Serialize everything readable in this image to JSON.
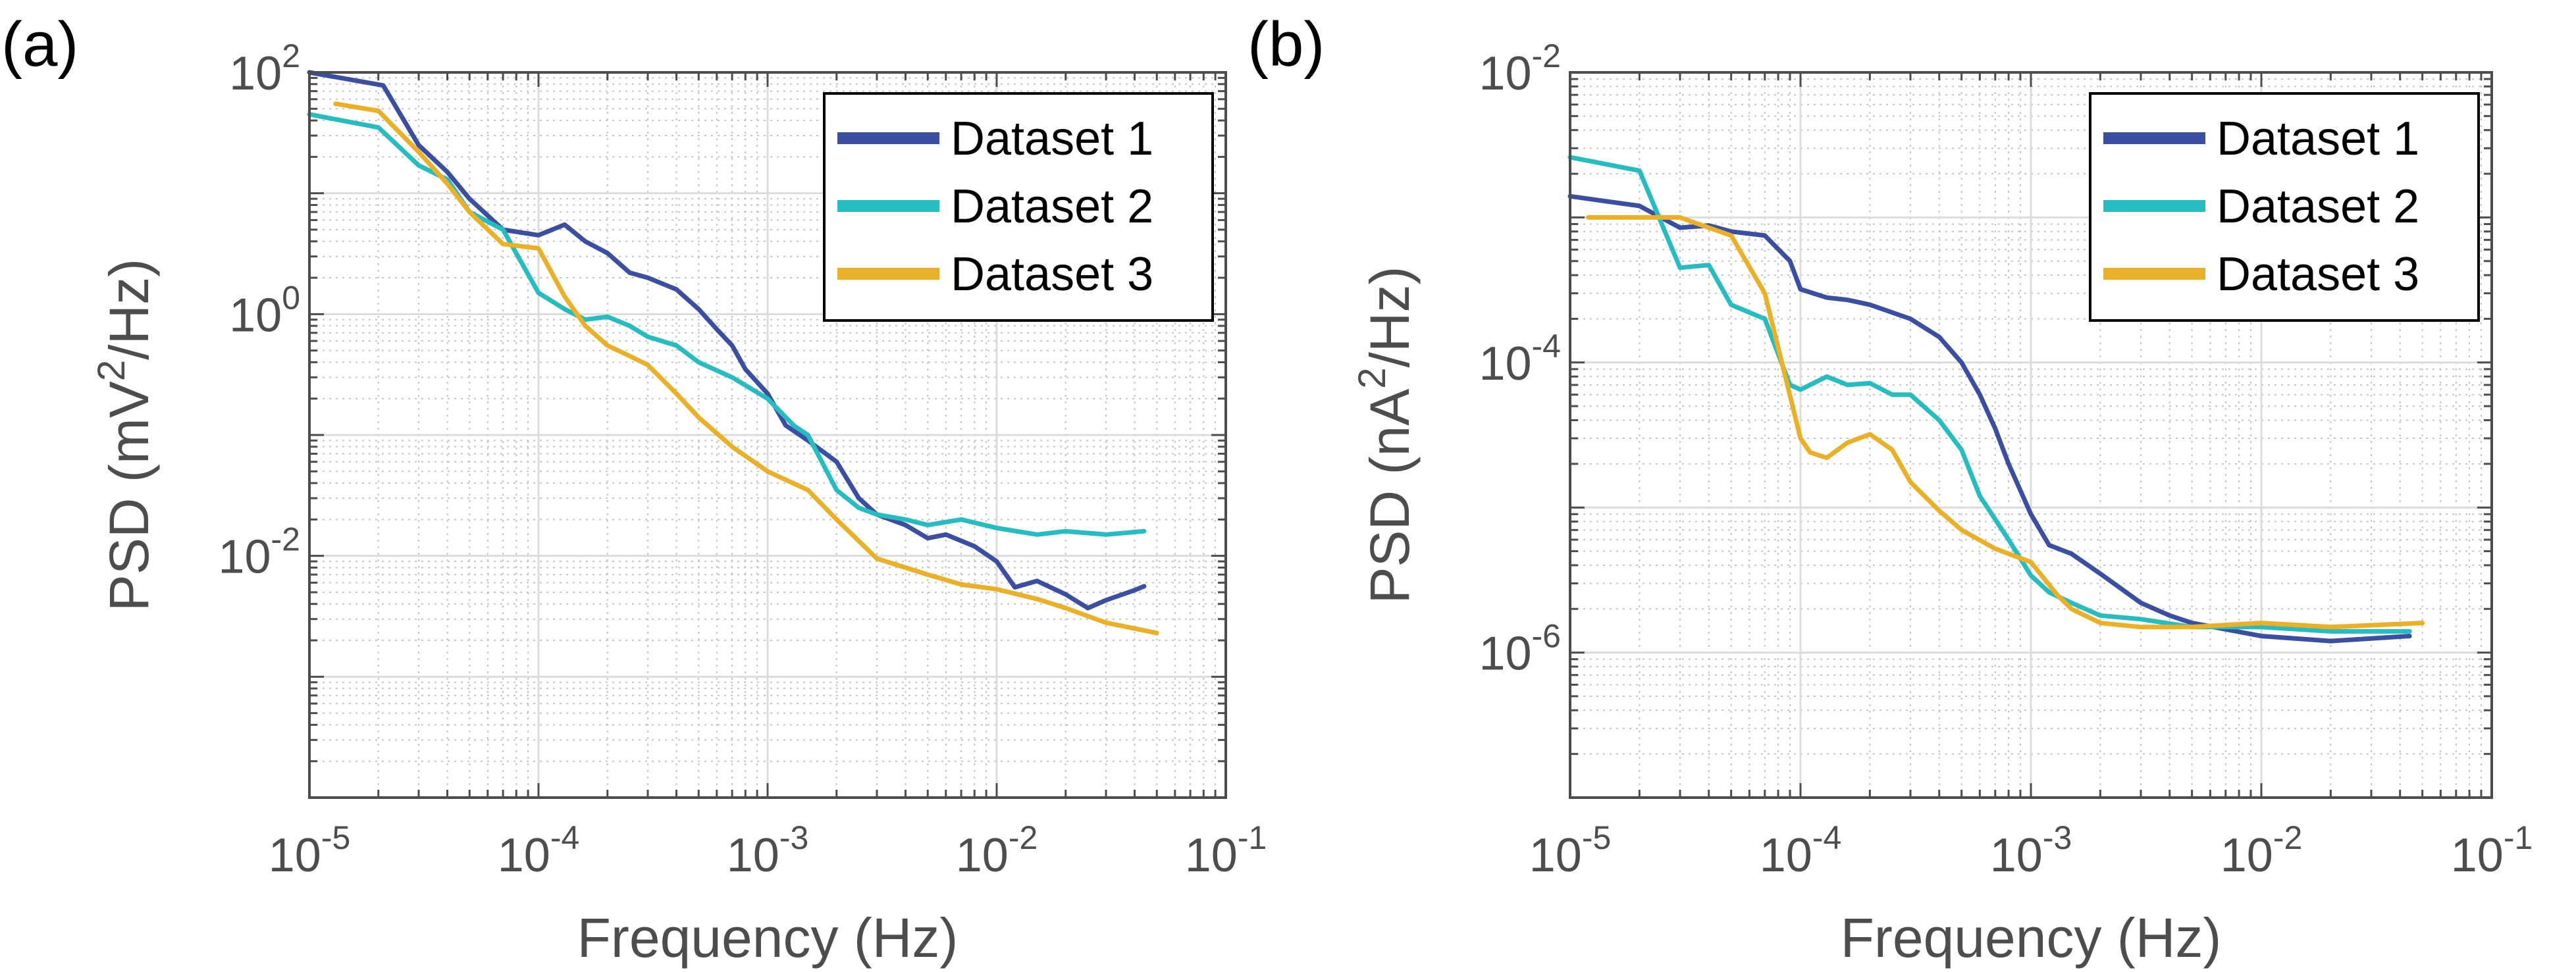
{
  "chart_data": [
    {
      "panel_label": "(a)",
      "type": "line",
      "xscale": "log",
      "yscale": "log",
      "xlim": [
        1e-05,
        0.1
      ],
      "ylim": [
        0.0001,
        100
      ],
      "xlabel": "Frequency (Hz)",
      "ylabel": "PSD (mV²/Hz)",
      "ylabel_base": "PSD (mV",
      "ylabel_sup": "2",
      "ylabel_tail": "/Hz)",
      "xticks": [
        {
          "value": 1e-05,
          "base": "10",
          "exp": "-5"
        },
        {
          "value": 0.0001,
          "base": "10",
          "exp": "-4"
        },
        {
          "value": 0.001,
          "base": "10",
          "exp": "-3"
        },
        {
          "value": 0.01,
          "base": "10",
          "exp": "-2"
        },
        {
          "value": 0.1,
          "base": "10",
          "exp": "-1"
        }
      ],
      "yticks": [
        {
          "value": 100,
          "base": "10",
          "exp": "2"
        },
        {
          "value": 1,
          "base": "10",
          "exp": "0"
        },
        {
          "value": 0.01,
          "base": "10",
          "exp": "-2"
        }
      ],
      "grid": true,
      "legend_position": "top-right",
      "series": [
        {
          "name": "Dataset 1",
          "color": "#3a4fa2",
          "points": [
            [
              1e-05,
              100
            ],
            [
              2.1e-05,
              78
            ],
            [
              3e-05,
              25
            ],
            [
              4e-05,
              15
            ],
            [
              5e-05,
              9
            ],
            [
              7e-05,
              5
            ],
            [
              0.0001,
              4.5
            ],
            [
              0.00013,
              5.5
            ],
            [
              0.00016,
              4
            ],
            [
              0.0002,
              3.2
            ],
            [
              0.00025,
              2.2
            ],
            [
              0.0003,
              2
            ],
            [
              0.0004,
              1.6
            ],
            [
              0.0005,
              1.1
            ],
            [
              0.0006,
              0.75
            ],
            [
              0.0007,
              0.55
            ],
            [
              0.0008,
              0.35
            ],
            [
              0.001,
              0.22
            ],
            [
              0.0012,
              0.12
            ],
            [
              0.0015,
              0.09
            ],
            [
              0.002,
              0.06
            ],
            [
              0.0025,
              0.03
            ],
            [
              0.003,
              0.022
            ],
            [
              0.004,
              0.018
            ],
            [
              0.005,
              0.014
            ],
            [
              0.006,
              0.015
            ],
            [
              0.008,
              0.012
            ],
            [
              0.01,
              0.009
            ],
            [
              0.012,
              0.0055
            ],
            [
              0.015,
              0.0062
            ],
            [
              0.02,
              0.0048
            ],
            [
              0.025,
              0.0037
            ],
            [
              0.03,
              0.0043
            ],
            [
              0.04,
              0.0052
            ],
            [
              0.044,
              0.0056
            ]
          ]
        },
        {
          "name": "Dataset 2",
          "color": "#27bdc0",
          "points": [
            [
              1e-05,
              45
            ],
            [
              2e-05,
              35
            ],
            [
              3e-05,
              17
            ],
            [
              4e-05,
              13
            ],
            [
              5e-05,
              7
            ],
            [
              7e-05,
              5
            ],
            [
              0.0001,
              1.5
            ],
            [
              0.00013,
              1.1
            ],
            [
              0.00016,
              0.9
            ],
            [
              0.0002,
              0.95
            ],
            [
              0.00025,
              0.8
            ],
            [
              0.0003,
              0.65
            ],
            [
              0.0004,
              0.55
            ],
            [
              0.0005,
              0.4
            ],
            [
              0.0007,
              0.3
            ],
            [
              0.001,
              0.2
            ],
            [
              0.0013,
              0.12
            ],
            [
              0.0015,
              0.1
            ],
            [
              0.002,
              0.035
            ],
            [
              0.0025,
              0.025
            ],
            [
              0.003,
              0.022
            ],
            [
              0.004,
              0.02
            ],
            [
              0.005,
              0.018
            ],
            [
              0.007,
              0.02
            ],
            [
              0.01,
              0.017
            ],
            [
              0.015,
              0.015
            ],
            [
              0.02,
              0.016
            ],
            [
              0.03,
              0.015
            ],
            [
              0.044,
              0.016
            ]
          ]
        },
        {
          "name": "Dataset 3",
          "color": "#eab128",
          "points": [
            [
              1.3e-05,
              55
            ],
            [
              2e-05,
              48
            ],
            [
              3e-05,
              22
            ],
            [
              4e-05,
              12
            ],
            [
              5e-05,
              7
            ],
            [
              7e-05,
              3.8
            ],
            [
              0.0001,
              3.5
            ],
            [
              0.00013,
              1.4
            ],
            [
              0.00016,
              0.8
            ],
            [
              0.0002,
              0.55
            ],
            [
              0.00025,
              0.45
            ],
            [
              0.0003,
              0.38
            ],
            [
              0.0004,
              0.22
            ],
            [
              0.0005,
              0.14
            ],
            [
              0.0007,
              0.08
            ],
            [
              0.001,
              0.05
            ],
            [
              0.0015,
              0.035
            ],
            [
              0.002,
              0.02
            ],
            [
              0.003,
              0.0095
            ],
            [
              0.004,
              0.008
            ],
            [
              0.005,
              0.007
            ],
            [
              0.007,
              0.0058
            ],
            [
              0.01,
              0.0053
            ],
            [
              0.015,
              0.0044
            ],
            [
              0.02,
              0.0037
            ],
            [
              0.03,
              0.0028
            ],
            [
              0.05,
              0.0023
            ]
          ]
        }
      ]
    },
    {
      "panel_label": "(b)",
      "type": "line",
      "xscale": "log",
      "yscale": "log",
      "xlim": [
        1e-05,
        0.1
      ],
      "ylim": [
        1e-07,
        0.01
      ],
      "xlabel": "Frequency (Hz)",
      "ylabel": "PSD (nA²/Hz)",
      "ylabel_base": "PSD (nA",
      "ylabel_sup": "2",
      "ylabel_tail": "/Hz)",
      "xticks": [
        {
          "value": 1e-05,
          "base": "10",
          "exp": "-5"
        },
        {
          "value": 0.0001,
          "base": "10",
          "exp": "-4"
        },
        {
          "value": 0.001,
          "base": "10",
          "exp": "-3"
        },
        {
          "value": 0.01,
          "base": "10",
          "exp": "-2"
        },
        {
          "value": 0.1,
          "base": "10",
          "exp": "-1"
        }
      ],
      "yticks": [
        {
          "value": 0.01,
          "base": "10",
          "exp": "-2"
        },
        {
          "value": 0.0001,
          "base": "10",
          "exp": "-4"
        },
        {
          "value": 1e-06,
          "base": "10",
          "exp": "-6"
        }
      ],
      "grid": true,
      "legend_position": "top-right",
      "series": [
        {
          "name": "Dataset 1",
          "color": "#3a4fa2",
          "points": [
            [
              1e-05,
              0.0014
            ],
            [
              2e-05,
              0.0012
            ],
            [
              3e-05,
              0.00085
            ],
            [
              4e-05,
              0.00088
            ],
            [
              5e-05,
              0.0008
            ],
            [
              7e-05,
              0.00075
            ],
            [
              9e-05,
              0.0005
            ],
            [
              0.0001,
              0.00032
            ],
            [
              0.00013,
              0.00028
            ],
            [
              0.00016,
              0.00027
            ],
            [
              0.0002,
              0.00025
            ],
            [
              0.0003,
              0.0002
            ],
            [
              0.0004,
              0.00015
            ],
            [
              0.0005,
              0.0001
            ],
            [
              0.0006,
              6e-05
            ],
            [
              0.0007,
              3.5e-05
            ],
            [
              0.0008,
              2e-05
            ],
            [
              0.001,
              9e-06
            ],
            [
              0.0012,
              5.5e-06
            ],
            [
              0.0015,
              4.8e-06
            ],
            [
              0.002,
              3.5e-06
            ],
            [
              0.003,
              2.2e-06
            ],
            [
              0.004,
              1.8e-06
            ],
            [
              0.005,
              1.6e-06
            ],
            [
              0.01,
              1.3e-06
            ],
            [
              0.02,
              1.2e-06
            ],
            [
              0.044,
              1.3e-06
            ]
          ]
        },
        {
          "name": "Dataset 2",
          "color": "#27bdc0",
          "points": [
            [
              1e-05,
              0.0026
            ],
            [
              2e-05,
              0.0021
            ],
            [
              3e-05,
              0.00045
            ],
            [
              4e-05,
              0.00047
            ],
            [
              5e-05,
              0.00025
            ],
            [
              7e-05,
              0.0002
            ],
            [
              9e-05,
              7e-05
            ],
            [
              0.0001,
              6.5e-05
            ],
            [
              0.00013,
              8e-05
            ],
            [
              0.00016,
              7e-05
            ],
            [
              0.0002,
              7.2e-05
            ],
            [
              0.00025,
              6e-05
            ],
            [
              0.0003,
              6e-05
            ],
            [
              0.0004,
              4e-05
            ],
            [
              0.0005,
              2.5e-05
            ],
            [
              0.0006,
              1.2e-05
            ],
            [
              0.0008,
              6e-06
            ],
            [
              0.001,
              3.4e-06
            ],
            [
              0.0012,
              2.6e-06
            ],
            [
              0.0015,
              2.2e-06
            ],
            [
              0.002,
              1.8e-06
            ],
            [
              0.003,
              1.7e-06
            ],
            [
              0.005,
              1.5e-06
            ],
            [
              0.01,
              1.5e-06
            ],
            [
              0.02,
              1.4e-06
            ],
            [
              0.044,
              1.4e-06
            ]
          ]
        },
        {
          "name": "Dataset 3",
          "color": "#eab128",
          "points": [
            [
              1.2e-05,
              0.001
            ],
            [
              2e-05,
              0.001
            ],
            [
              3e-05,
              0.001
            ],
            [
              4e-05,
              0.00085
            ],
            [
              5e-05,
              0.00075
            ],
            [
              7e-05,
              0.0003
            ],
            [
              0.0001,
              3e-05
            ],
            [
              0.00011,
              2.4e-05
            ],
            [
              0.00013,
              2.2e-05
            ],
            [
              0.00016,
              2.8e-05
            ],
            [
              0.0002,
              3.2e-05
            ],
            [
              0.00025,
              2.5e-05
            ],
            [
              0.0003,
              1.5e-05
            ],
            [
              0.0004,
              9.5e-06
            ],
            [
              0.0005,
              7e-06
            ],
            [
              0.0007,
              5.2e-06
            ],
            [
              0.001,
              4.2e-06
            ],
            [
              0.0013,
              2.5e-06
            ],
            [
              0.0015,
              2e-06
            ],
            [
              0.002,
              1.6e-06
            ],
            [
              0.003,
              1.5e-06
            ],
            [
              0.005,
              1.5e-06
            ],
            [
              0.01,
              1.6e-06
            ],
            [
              0.02,
              1.5e-06
            ],
            [
              0.05,
              1.6e-06
            ]
          ]
        }
      ]
    }
  ]
}
